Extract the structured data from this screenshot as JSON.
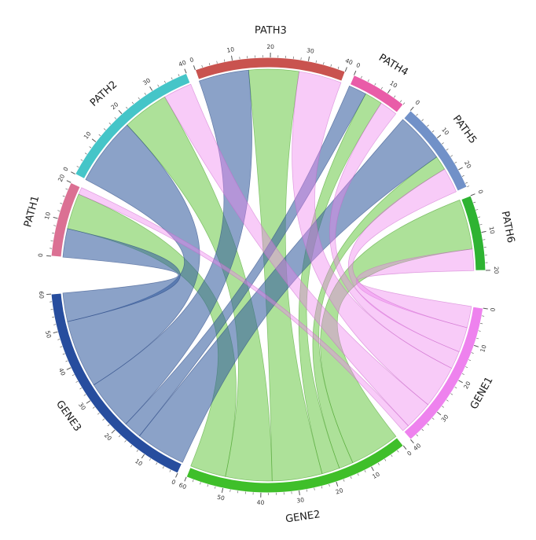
{
  "figure_name": "gene-pathway-chord-diagram",
  "chart_data": {
    "type": "chord",
    "title": "",
    "description": "Circos-style chord diagram linking genes to pathways; ribbon widths give flow values read from each sector axis.",
    "axis": {
      "major_tick": 10,
      "minor_tick": 2
    },
    "layout": {
      "gap_small_deg": 2.5,
      "gap_big_deg": 10,
      "start_angle_deg": 180,
      "clockwise": true,
      "order": [
        "PATH1",
        "PATH2",
        "PATH3",
        "PATH4",
        "PATH5",
        "PATH6",
        "GENE1",
        "GENE2",
        "GENE3"
      ]
    },
    "segments": [
      {
        "id": "PATH1",
        "label": "PATH1",
        "total": 20,
        "group": "path",
        "arc_color": "#db7093"
      },
      {
        "id": "PATH2",
        "label": "PATH2",
        "total": 40,
        "group": "path",
        "arc_color": "#45c5c8"
      },
      {
        "id": "PATH3",
        "label": "PATH3",
        "total": 40,
        "group": "path",
        "arc_color": "#c9534f"
      },
      {
        "id": "PATH4",
        "label": "PATH4",
        "total": 15,
        "group": "path",
        "arc_color": "#e95ca8"
      },
      {
        "id": "PATH5",
        "label": "PATH5",
        "total": 25,
        "group": "path",
        "arc_color": "#7191c8"
      },
      {
        "id": "PATH6",
        "label": "PATH6",
        "total": 20,
        "group": "path",
        "arc_color": "#2eb332"
      },
      {
        "id": "GENE1",
        "label": "GENE1",
        "total": 40,
        "group": "gene",
        "arc_color": "#ee82ee",
        "ribbon_color": "rgba(238,130,238,0.42)",
        "ribbon_stroke": "rgba(200,100,200,0.55)"
      },
      {
        "id": "GENE2",
        "label": "GENE2",
        "total": 60,
        "group": "gene",
        "arc_color": "#3fbf2a",
        "ribbon_color": "rgba(105,200,70,0.55)",
        "ribbon_stroke": "rgba(70,160,40,0.60)"
      },
      {
        "id": "GENE3",
        "label": "GENE3",
        "total": 60,
        "group": "gene",
        "arc_color": "#274d9e",
        "ribbon_color": "rgba(55,95,160,0.58)",
        "ribbon_stroke": "rgba(40,70,130,0.60)"
      }
    ],
    "flows": [
      {
        "from": "GENE1",
        "to": "PATH1",
        "value": 2
      },
      {
        "from": "GENE1",
        "to": "PATH2",
        "value": 8
      },
      {
        "from": "GENE1",
        "to": "PATH3",
        "value": 12
      },
      {
        "from": "GENE1",
        "to": "PATH4",
        "value": 5
      },
      {
        "from": "GENE1",
        "to": "PATH5",
        "value": 7
      },
      {
        "from": "GENE1",
        "to": "PATH6",
        "value": 6
      },
      {
        "from": "GENE2",
        "to": "PATH1",
        "value": 10
      },
      {
        "from": "GENE2",
        "to": "PATH2",
        "value": 13
      },
      {
        "from": "GENE2",
        "to": "PATH3",
        "value": 14
      },
      {
        "from": "GENE2",
        "to": "PATH4",
        "value": 5
      },
      {
        "from": "GENE2",
        "to": "PATH5",
        "value": 4
      },
      {
        "from": "GENE2",
        "to": "PATH6",
        "value": 14
      },
      {
        "from": "GENE3",
        "to": "PATH1",
        "value": 8
      },
      {
        "from": "GENE3",
        "to": "PATH2",
        "value": 19
      },
      {
        "from": "GENE3",
        "to": "PATH3",
        "value": 14
      },
      {
        "from": "GENE3",
        "to": "PATH4",
        "value": 5
      },
      {
        "from": "GENE3",
        "to": "PATH5",
        "value": 14
      },
      {
        "from": "GENE3",
        "to": "PATH6",
        "value": 0
      }
    ],
    "draw_order_by_gene": [
      "GENE2",
      "GENE3",
      "GENE1"
    ],
    "gene_flow_order": [
      "PATH6",
      "PATH5",
      "PATH4",
      "PATH3",
      "PATH2",
      "PATH1"
    ],
    "path_flow_order": [
      "GENE3",
      "GENE2",
      "GENE1"
    ]
  }
}
